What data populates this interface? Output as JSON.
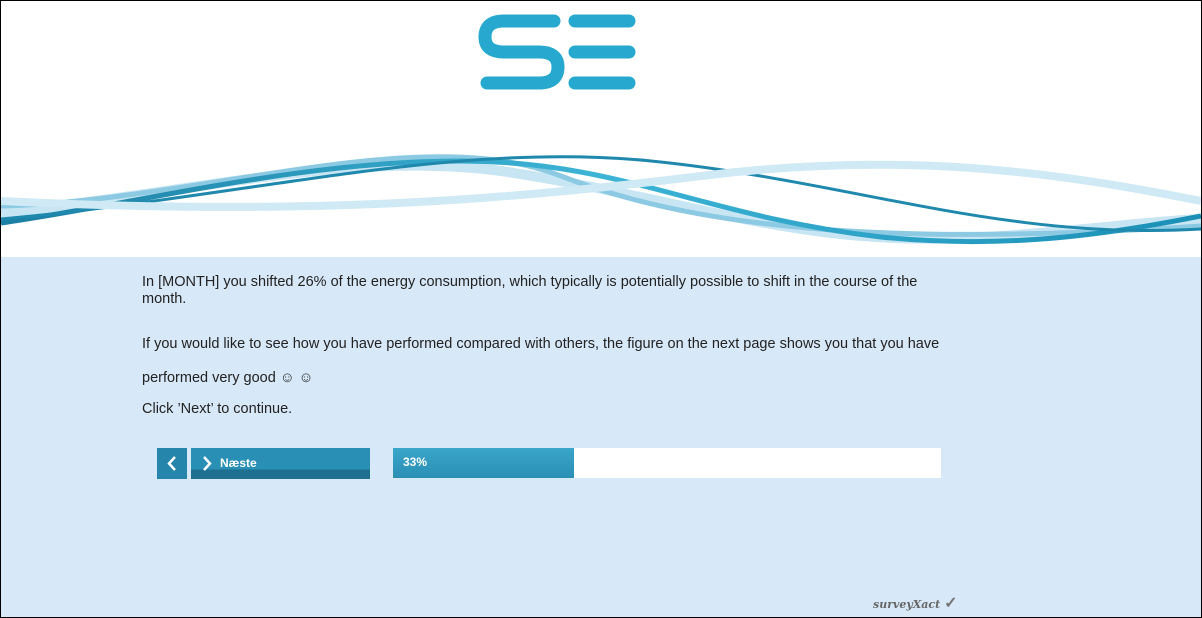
{
  "content": {
    "paragraphs": [
      "In [MONTH] you shifted 26% of the energy consumption, which typically is potentially possible to shift in the course of the month.",
      "If you would like to see how you have performed compared with others, the figure on the next page shows you that you have performed very good ☺ ☺",
      "Click ’Next’ to continue."
    ],
    "next_button": "Næste",
    "progress": {
      "value": 33,
      "label": "33%"
    },
    "footer_brand": "surveyXact"
  }
}
